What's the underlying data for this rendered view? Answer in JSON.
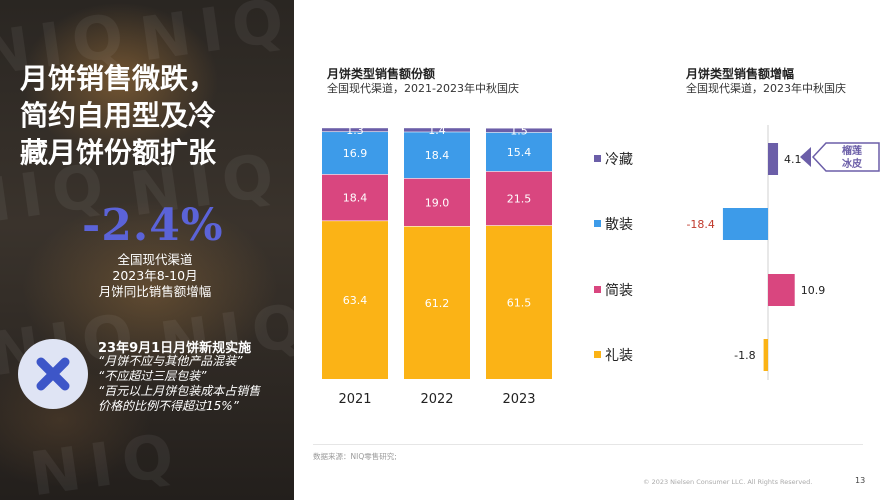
{
  "left": {
    "watermark": "NIQ",
    "headline_lines": [
      "月饼销售微跌，",
      "简约自用型及冷",
      "藏月饼份额扩张"
    ],
    "big_stat": "-2.4%",
    "stat_caption": [
      "全国现代渠道",
      "2023年8-10月",
      "月饼同比销售额增幅"
    ],
    "rules_title": "23年9月1日月饼新规实施",
    "rules_lines": [
      "“月饼不应与其他产品混装”",
      "“不应超过三层包装”",
      "“百元以上月饼包装成本占销售",
      "价格的比例不得超过15%”"
    ]
  },
  "chart_left_header": {
    "title": "月饼类型销售额份额",
    "subtitle": "全国现代渠道，2021-2023年中秋国庆"
  },
  "chart_right_header": {
    "title": "月饼类型销售额增幅",
    "subtitle": "全国现代渠道，2023年中秋国庆"
  },
  "callout": {
    "lines": [
      "榴莲",
      "冰皮"
    ]
  },
  "footer": {
    "source": "数据来源：NIQ零售研究;",
    "copyright": "© 2023 Nielsen Consumer LLC. All Rights Reserved.",
    "page": "13"
  },
  "colors": {
    "cold": "#6b5ea8",
    "bulk": "#3d9be9",
    "simple": "#d9467f",
    "gift": "#fbb316",
    "stat": "#5b63d8",
    "x_icon": "#3d56c8"
  },
  "chart_data": [
    {
      "type": "bar",
      "stacked": true,
      "categories": [
        "2021",
        "2022",
        "2023"
      ],
      "series": [
        {
          "name": "礼装",
          "values": [
            63.4,
            61.2,
            61.5
          ],
          "color": "#fbb316"
        },
        {
          "name": "简装",
          "values": [
            18.4,
            19.0,
            21.5
          ],
          "color": "#d9467f"
        },
        {
          "name": "散装",
          "values": [
            16.9,
            18.4,
            15.4
          ],
          "color": "#3d9be9"
        },
        {
          "name": "冷藏",
          "values": [
            1.3,
            1.4,
            1.5
          ],
          "color": "#6b5ea8"
        }
      ],
      "ylim": [
        0,
        100
      ],
      "title": "月饼类型销售额份额"
    },
    {
      "type": "bar",
      "orientation": "horizontal",
      "categories": [
        "冷藏",
        "散装",
        "简装",
        "礼装"
      ],
      "values": [
        4.1,
        -18.4,
        10.9,
        -1.8
      ],
      "colors": [
        "#6b5ea8",
        "#3d9be9",
        "#d9467f",
        "#fbb316"
      ],
      "title": "月饼类型销售额增幅"
    }
  ]
}
